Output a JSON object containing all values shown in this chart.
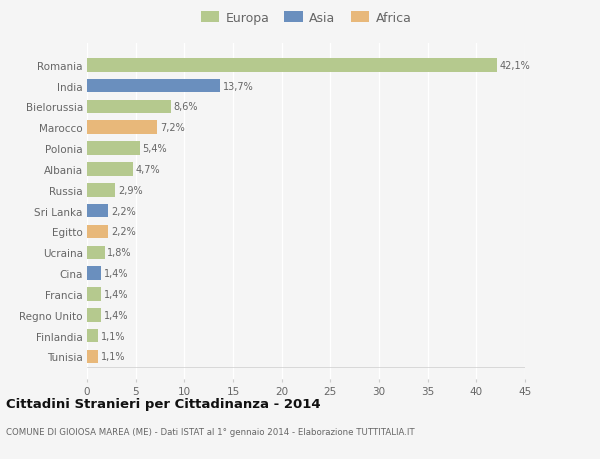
{
  "title": "Cittadini Stranieri per Cittadinanza - 2014",
  "subtitle": "COMUNE DI GIOIOSA MAREA (ME) - Dati ISTAT al 1° gennaio 2014 - Elaborazione TUTTITALIA.IT",
  "categories": [
    "Tunisia",
    "Finlandia",
    "Regno Unito",
    "Francia",
    "Cina",
    "Ucraina",
    "Egitto",
    "Sri Lanka",
    "Russia",
    "Albania",
    "Polonia",
    "Marocco",
    "Bielorussia",
    "India",
    "Romania"
  ],
  "values": [
    1.1,
    1.1,
    1.4,
    1.4,
    1.4,
    1.8,
    2.2,
    2.2,
    2.9,
    4.7,
    5.4,
    7.2,
    8.6,
    13.7,
    42.1
  ],
  "continents": [
    "Africa",
    "Europa",
    "Europa",
    "Europa",
    "Asia",
    "Europa",
    "Africa",
    "Asia",
    "Europa",
    "Europa",
    "Europa",
    "Africa",
    "Europa",
    "Asia",
    "Europa"
  ],
  "labels": [
    "1,1%",
    "1,1%",
    "1,4%",
    "1,4%",
    "1,4%",
    "1,8%",
    "2,2%",
    "2,2%",
    "2,9%",
    "4,7%",
    "5,4%",
    "7,2%",
    "8,6%",
    "13,7%",
    "42,1%"
  ],
  "color_europa": "#b5c98e",
  "color_asia": "#6a8fbe",
  "color_africa": "#e8b87a",
  "background_color": "#f5f5f5",
  "grid_color": "#ffffff",
  "text_color": "#666666",
  "xlim": [
    0,
    45
  ],
  "xticks": [
    0,
    5,
    10,
    15,
    20,
    25,
    30,
    35,
    40,
    45
  ]
}
